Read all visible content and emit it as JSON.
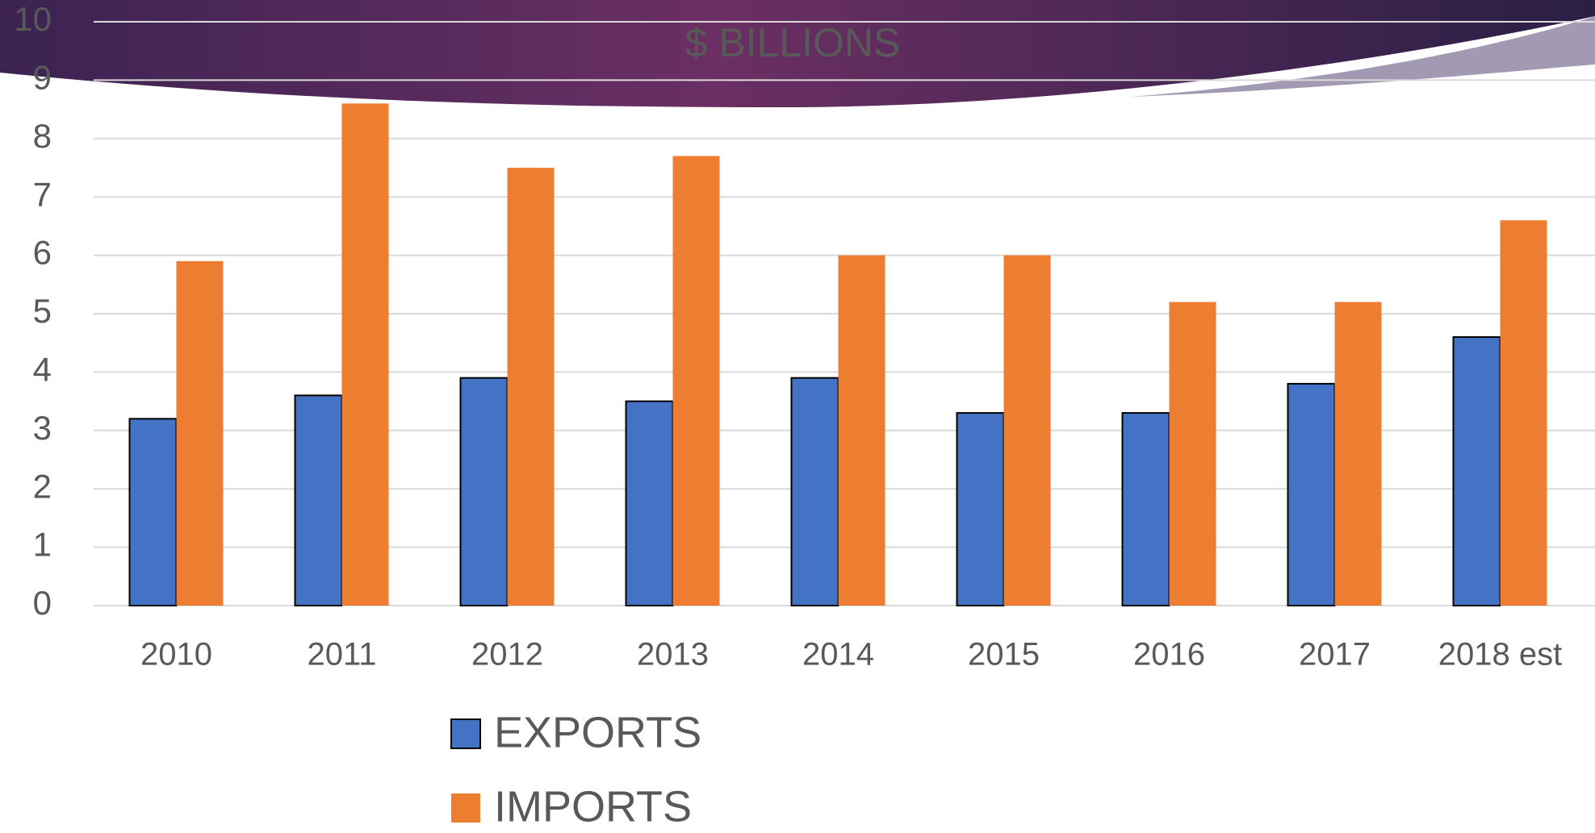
{
  "chart_data": {
    "type": "bar",
    "title": "$ BILLIONS",
    "categories": [
      "2010",
      "2011",
      "2012",
      "2013",
      "2014",
      "2015",
      "2016",
      "2017",
      "2018 est"
    ],
    "series": [
      {
        "name": "EXPORTS",
        "color": "#4472c4",
        "values": [
          3.2,
          3.6,
          3.9,
          3.5,
          3.9,
          3.3,
          3.3,
          3.8,
          4.6
        ]
      },
      {
        "name": "IMPORTS",
        "color": "#ed7d31",
        "values": [
          5.9,
          8.6,
          7.5,
          7.7,
          6.0,
          6.0,
          5.2,
          5.2,
          6.6
        ]
      }
    ],
    "ylim": [
      0,
      10
    ],
    "yticks": [
      0,
      1,
      2,
      3,
      4,
      5,
      6,
      7,
      8,
      9,
      10
    ],
    "grid": true,
    "legend": "bottom"
  }
}
